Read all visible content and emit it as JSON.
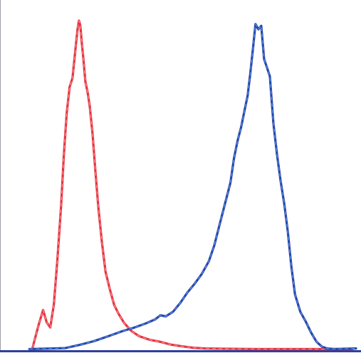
{
  "chart_data": {
    "type": "line",
    "title": "",
    "xlabel": "",
    "ylabel": "",
    "xlim": [
      0,
      100
    ],
    "ylim": [
      0,
      100
    ],
    "grid": false,
    "legend": "none",
    "series": [
      {
        "color": "#e8323c",
        "highlight": "#f7a8b4",
        "x": [
          8.9,
          10.5,
          11.8,
          12.8,
          13.8,
          14.8,
          15.8,
          16.8,
          17.6,
          18.4,
          19.2,
          20.0,
          20.8,
          21.4,
          21.8,
          22.2,
          22.6,
          23.0,
          23.6,
          24.2,
          24.8,
          25.6,
          26.4,
          27.2,
          28.2,
          29.2,
          30.4,
          31.6,
          32.8,
          34.4,
          36.4,
          38.6,
          41.4,
          44.4,
          47.4,
          50.5,
          53.5,
          57.0,
          62.0,
          72.0,
          88.0,
          98.0
        ],
        "y": [
          0.8,
          7.0,
          11.5,
          8.0,
          6.5,
          13.0,
          26.0,
          41.0,
          56.0,
          68.0,
          75.5,
          78.0,
          86.0,
          92.0,
          94.5,
          93.0,
          88.0,
          84.0,
          77.0,
          74.0,
          70.0,
          62.0,
          51.0,
          41.0,
          31.0,
          22.5,
          17.5,
          13.0,
          10.5,
          7.8,
          5.5,
          4.0,
          3.0,
          2.4,
          1.6,
          1.1,
          0.7,
          0.5,
          0.4,
          0.3,
          0.3,
          0.3
        ]
      },
      {
        "color": "#2b43ad",
        "highlight": "#5ab4ea",
        "x": [
          8.0,
          18.0,
          22.0,
          26.0,
          30.0,
          34.0,
          37.0,
          40.0,
          43.0,
          44.5,
          46.0,
          48.0,
          50.0,
          52.0,
          54.0,
          56.0,
          58.0,
          59.5,
          61.0,
          62.5,
          64.0,
          65.0,
          66.0,
          67.0,
          68.0,
          68.8,
          69.5,
          70.3,
          71.0,
          71.8,
          72.6,
          73.4,
          74.2,
          75.0,
          76.0,
          77.0,
          78.0,
          79.0,
          80.0,
          81.0,
          82.0,
          83.5,
          85.0,
          86.5,
          88.0,
          89.5,
          91.0,
          93.0,
          96.0,
          99.0
        ],
        "y": [
          0.3,
          0.6,
          1.5,
          2.6,
          4.0,
          5.5,
          6.4,
          7.5,
          8.8,
          10.0,
          9.7,
          11.0,
          13.5,
          16.5,
          19.0,
          21.8,
          25.5,
          30.0,
          36.0,
          42.0,
          48.0,
          55.0,
          60.0,
          64.0,
          69.0,
          73.0,
          79.0,
          86.5,
          93.5,
          92.0,
          93.0,
          83.5,
          81.0,
          78.5,
          65.0,
          56.0,
          48.5,
          42.0,
          34.0,
          24.0,
          16.0,
          11.0,
          8.2,
          5.0,
          2.4,
          1.0,
          0.5,
          0.3,
          0.4,
          0.5
        ]
      }
    ]
  }
}
